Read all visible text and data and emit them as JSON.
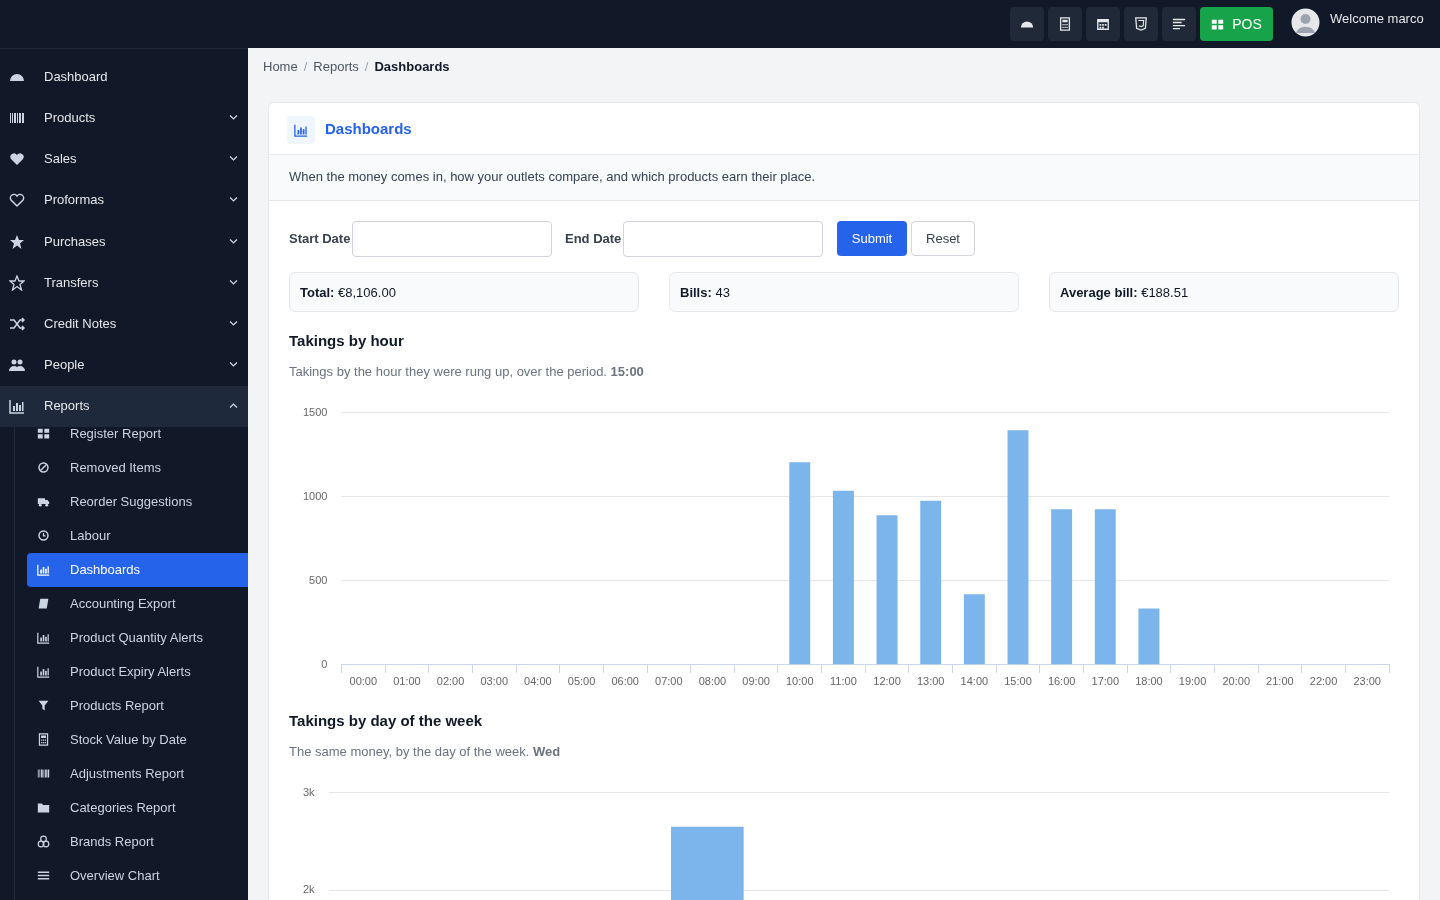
{
  "chart_data": [
    {
      "type": "other",
      "annotations": [
        "POS",
        "Welcome marco",
        "Dashboard",
        "Products",
        "Sales",
        "Proformas",
        "Purchases",
        "Transfers",
        "Credit Notes",
        "People",
        "Reports",
        "Register Report",
        "Removed Items",
        "Reorder Suggestions",
        "Labour",
        "Dashboards",
        "Accounting Export",
        "Product Quantity Alerts",
        "Product Expiry Alerts",
        "Products Report",
        "Stock Value by Date",
        "Adjustments Report",
        "Categories Report",
        "Brands Report",
        "Overview Chart"
      ]
    },
    {
      "type": "other",
      "title": "Dashboards",
      "subtitle": "When the money comes in, how your outlets compare, and which products earn their place.",
      "annotations": [
        "Home",
        "Reports",
        "Dashboards",
        "Start Date",
        "End Date",
        "Submit",
        "Reset",
        "Total:",
        "€8,106.00",
        "Bills:",
        "43",
        "Average bill:",
        "€188.51",
        "/",
        "/"
      ]
    },
    {
      "type": "bar",
      "title": "Takings by hour",
      "subtitle": "Takings by the hour they were rung up, over the period. 15:00",
      "categories": [
        "00:00",
        "01:00",
        "02:00",
        "03:00",
        "04:00",
        "05:00",
        "06:00",
        "07:00",
        "08:00",
        "09:00",
        "10:00",
        "11:00",
        "12:00",
        "13:00",
        "14:00",
        "15:00",
        "16:00",
        "17:00",
        "18:00",
        "19:00",
        "20:00",
        "21:00",
        "22:00",
        "23:00"
      ],
      "values": [
        0,
        0,
        0,
        0,
        0,
        0,
        0,
        0,
        0,
        0,
        1205,
        1035,
        890,
        975,
        420,
        1395,
        925,
        925,
        335,
        0,
        0,
        0,
        0,
        0
      ],
      "color": "#7cb5ec",
      "ylim": [
        0,
        1500
      ],
      "yticks": [
        0,
        500,
        1000,
        1500
      ],
      "grid": "y",
      "legend": false
    },
    {
      "type": "bar",
      "title": "Takings by day of the week",
      "subtitle": "The same money, by the day of the week. Wed",
      "categories": [
        null,
        null,
        null,
        null,
        null,
        null,
        null
      ],
      "values": [
        null,
        null,
        2650,
        null,
        null,
        null,
        null
      ],
      "color": "#7cb5ec",
      "ylim": [
        0,
        3000
      ],
      "yticks": [
        {
          "value": 2000,
          "label": "2k"
        },
        {
          "value": 3000,
          "label": "3k"
        }
      ],
      "grid": "y",
      "legend": false
    }
  ]
}
